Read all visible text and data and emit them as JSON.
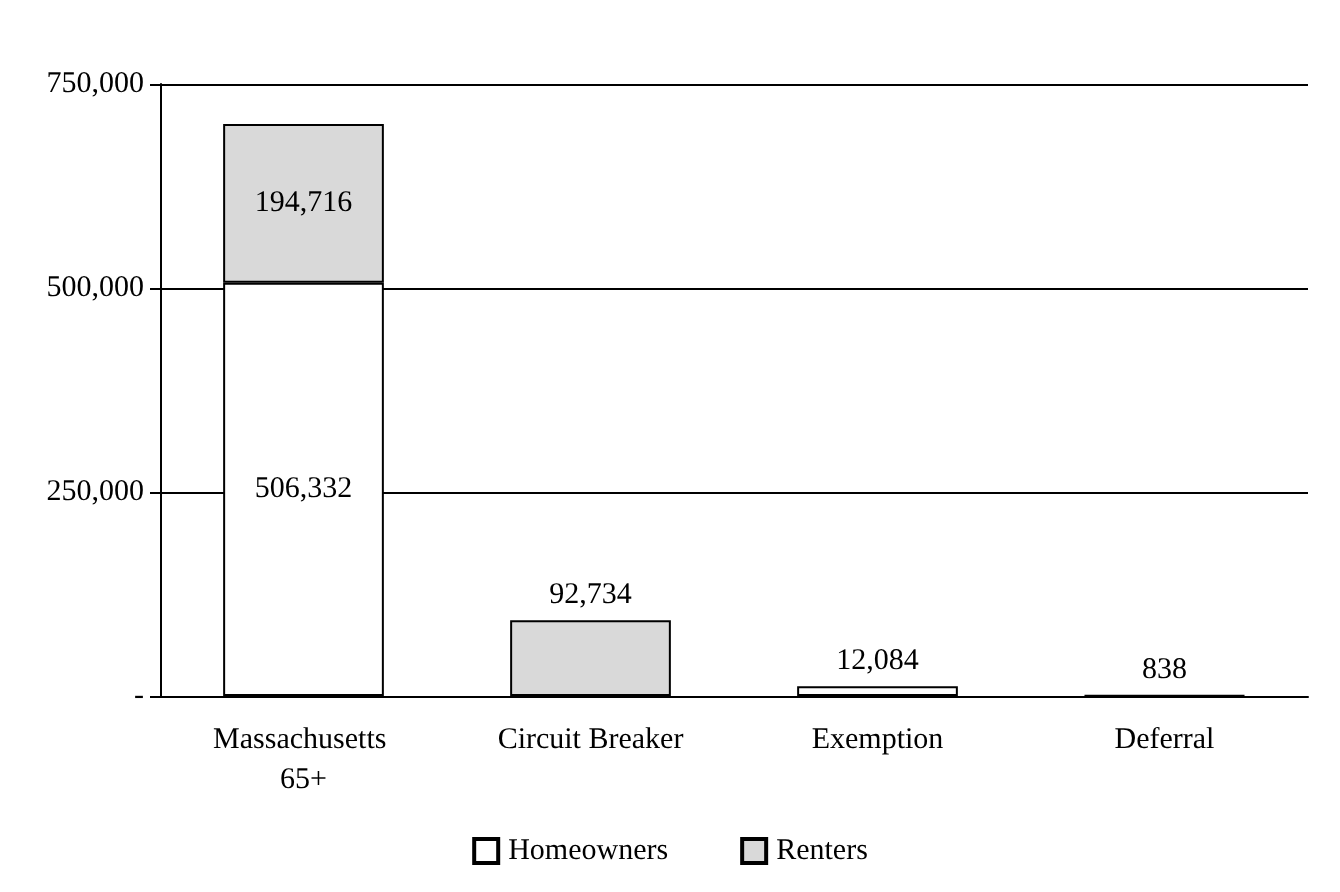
{
  "chart_data": {
    "type": "bar",
    "stacked": true,
    "categories": [
      "Massachusetts 65+",
      "Circuit Breaker",
      "Exemption",
      "Deferral"
    ],
    "series": [
      {
        "name": "Homeowners",
        "color": "#ffffff",
        "colors": [
          "#ffffff",
          null,
          "#ffffff",
          "#000000"
        ],
        "values": [
          506332,
          null,
          12084,
          838
        ],
        "value_labels": [
          "506,332",
          null,
          "12,084",
          "838"
        ]
      },
      {
        "name": "Renters",
        "color": "#d9d9d9",
        "values": [
          194716,
          92734,
          null,
          null
        ],
        "value_labels": [
          "194,716",
          "92,734",
          null,
          null
        ]
      }
    ],
    "ylim": [
      0,
      750000
    ],
    "yticks": [
      {
        "value": 0,
        "label": "-"
      },
      {
        "value": 250000,
        "label": "250,000"
      },
      {
        "value": 500000,
        "label": "500,000"
      },
      {
        "value": 750000,
        "label": "750,000"
      }
    ],
    "grid": "y",
    "legend": "bottom"
  }
}
